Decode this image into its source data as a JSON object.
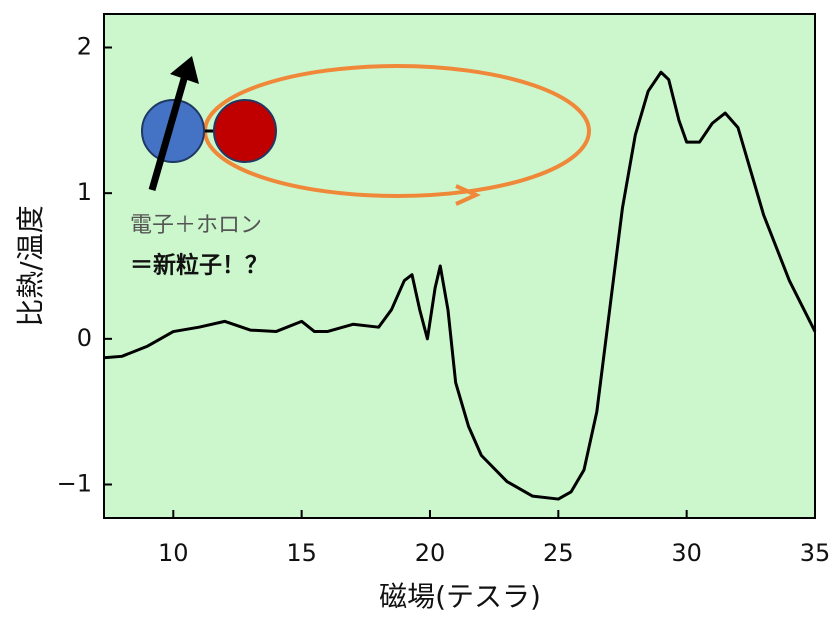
{
  "chart_data": {
    "type": "line",
    "x_label": "磁場(テスラ)",
    "y_label": "比熱/温度",
    "annotations": [
      "電子＋ホロン",
      "＝新粒子！？"
    ],
    "xlim": [
      7.3,
      35
    ],
    "ylim": [
      -1.23,
      2.23
    ],
    "xticks": [
      10,
      15,
      20,
      25,
      30,
      35
    ],
    "yticks": [
      {
        "value": -1,
        "label": "−1"
      },
      0,
      1,
      2
    ],
    "grid": false,
    "background": "#ccf7cc",
    "series": [
      {
        "color": "#000000",
        "x": [
          7.3,
          8,
          9,
          10,
          11,
          12,
          13,
          14,
          15,
          15.5,
          16,
          17,
          18,
          18.5,
          19,
          19.3,
          19.6,
          19.9,
          20.2,
          20.4,
          20.7,
          21,
          21.5,
          22,
          23,
          24,
          25,
          25.5,
          26,
          26.5,
          27,
          27.5,
          28,
          28.5,
          29,
          29.3,
          29.7,
          30,
          30.5,
          31,
          31.5,
          32,
          32.5,
          33,
          34,
          35
        ],
        "values": [
          -0.13,
          -0.12,
          -0.05,
          0.05,
          0.08,
          0.12,
          0.06,
          0.05,
          0.12,
          0.05,
          0.05,
          0.1,
          0.08,
          0.2,
          0.4,
          0.44,
          0.2,
          0.0,
          0.35,
          0.5,
          0.2,
          -0.3,
          -0.6,
          -0.8,
          -0.98,
          -1.08,
          -1.1,
          -1.05,
          -0.9,
          -0.5,
          0.2,
          0.9,
          1.4,
          1.7,
          1.83,
          1.78,
          1.5,
          1.35,
          1.35,
          1.48,
          1.55,
          1.45,
          1.15,
          0.85,
          0.4,
          0.05
        ]
      }
    ]
  }
}
